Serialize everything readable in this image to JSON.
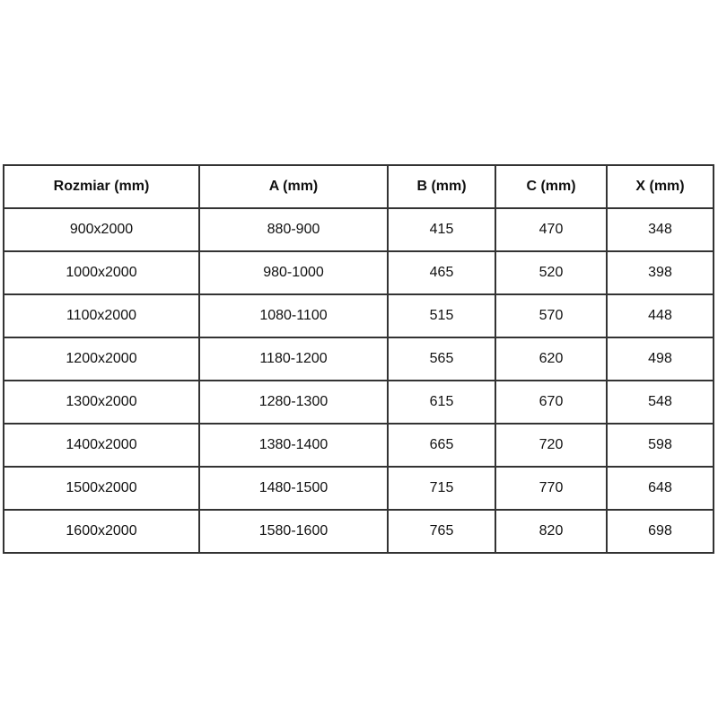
{
  "colors": {
    "background": "#ffffff",
    "border": "#333333",
    "text": "#111111"
  },
  "chart_data": {
    "type": "table",
    "title": "",
    "columns": [
      "Rozmiar (mm)",
      "A (mm)",
      "B (mm)",
      "C (mm)",
      "X (mm)"
    ],
    "rows": [
      [
        "900x2000",
        "880-900",
        "415",
        "470",
        "348"
      ],
      [
        "1000x2000",
        "980-1000",
        "465",
        "520",
        "398"
      ],
      [
        "1100x2000",
        "1080-1100",
        "515",
        "570",
        "448"
      ],
      [
        "1200x2000",
        "1180-1200",
        "565",
        "620",
        "498"
      ],
      [
        "1300x2000",
        "1280-1300",
        "615",
        "670",
        "548"
      ],
      [
        "1400x2000",
        "1380-1400",
        "665",
        "720",
        "598"
      ],
      [
        "1500x2000",
        "1480-1500",
        "715",
        "770",
        "648"
      ],
      [
        "1600x2000",
        "1580-1600",
        "765",
        "820",
        "698"
      ]
    ]
  }
}
